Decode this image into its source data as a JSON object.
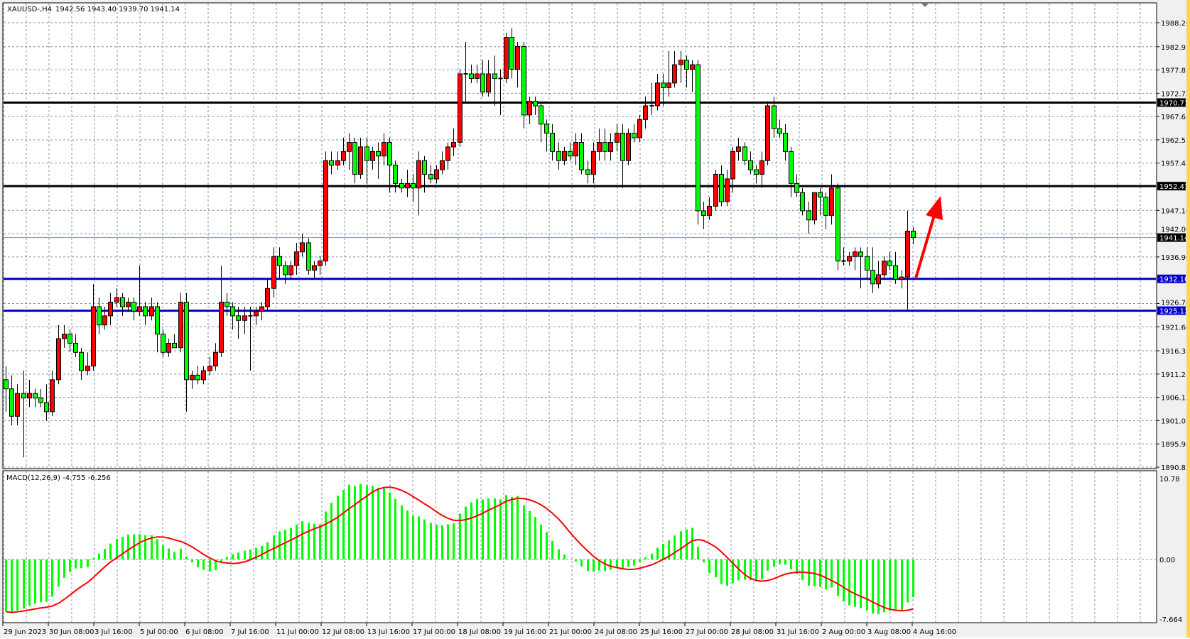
{
  "header": {
    "symbol": "XAUUSD-,H4",
    "ohlc": "1942.56 1943.40 1939.70 1941.14"
  },
  "macd": {
    "label": "MACD(12,26,9) -4.755 -6.256",
    "fast": 12,
    "slow": 26,
    "signal": 9,
    "axis_labels": [
      "10.78",
      "0.00",
      "-7.664"
    ],
    "range": [
      -7.664,
      10.78
    ],
    "hist_color": "#00ff00",
    "signal_color": "#ff0000"
  },
  "price_axis": {
    "range": [
      1890.85,
      1988.2
    ],
    "ticks": [
      "1988.20",
      "1982.95",
      "1977.85",
      "1972.75",
      "1967.65",
      "1962.55",
      "1957.45",
      "1947.10",
      "1942.00",
      "1936.90",
      "1926.70",
      "1921.60",
      "1916.35",
      "1911.25",
      "1906.15",
      "1901.05",
      "1895.95",
      "1890.85"
    ]
  },
  "levels": [
    {
      "price": "1970.71",
      "color": "#000000",
      "kind": "resistance"
    },
    {
      "price": "1952.41",
      "color": "#000000",
      "kind": "resistance"
    },
    {
      "price": "1941.14",
      "color": "#000000",
      "kind": "current-price"
    },
    {
      "price": "1932.10",
      "color": "#0000cc",
      "kind": "support"
    },
    {
      "price": "1925.13",
      "color": "#0000cc",
      "kind": "support"
    }
  ],
  "time_axis": [
    "29 Jun 2023",
    "30 Jun 08:00",
    "3 Jul 16:00",
    "5 Jul 00:00",
    "6 Jul 08:00",
    "7 Jul 16:00",
    "11 Jul 00:00",
    "12 Jul 08:00",
    "13 Jul 16:00",
    "17 Jul 00:00",
    "18 Jul 08:00",
    "19 Jul 16:00",
    "21 Jul 00:00",
    "24 Jul 08:00",
    "25 Jul 16:00",
    "27 Jul 00:00",
    "28 Jul 08:00",
    "31 Jul 16:00",
    "2 Aug 00:00",
    "3 Aug 08:00",
    "4 Aug 16:00"
  ],
  "colors": {
    "bull": "#ff0000",
    "bear": "#00ff00",
    "grid": "#8394a8",
    "arrow": "#ff0000"
  },
  "annotation": {
    "type": "arrow-up",
    "color": "#ff0000"
  },
  "chart_data": {
    "type": "candlestick",
    "title": "XAUUSD-,H4",
    "ylim": [
      1890.85,
      1988.2
    ],
    "candles_ohlc": [
      [
        1910,
        1913,
        1903,
        1908
      ],
      [
        1908,
        1911,
        1900,
        1902
      ],
      [
        1902,
        1909,
        1900,
        1907
      ],
      [
        1907,
        1912,
        1893,
        1906
      ],
      [
        1906,
        1910,
        1904,
        1907
      ],
      [
        1907,
        1908,
        1904,
        1906
      ],
      [
        1906,
        1908,
        1904,
        1905
      ],
      [
        1905,
        1909,
        1901,
        1903
      ],
      [
        1903,
        1912,
        1902,
        1910
      ],
      [
        1910,
        1922,
        1909,
        1919
      ],
      [
        1919,
        1922,
        1917,
        1920
      ],
      [
        1920,
        1921,
        1916,
        1918
      ],
      [
        1918,
        1920,
        1915,
        1916
      ],
      [
        1916,
        1917,
        1910,
        1912
      ],
      [
        1912,
        1916,
        1911,
        1913
      ],
      [
        1913,
        1931,
        1912,
        1926
      ],
      [
        1926,
        1928,
        1920,
        1922
      ],
      [
        1922,
        1926,
        1921,
        1924
      ],
      [
        1924,
        1929,
        1922,
        1927
      ],
      [
        1927,
        1930,
        1926,
        1928
      ],
      [
        1928,
        1929,
        1924,
        1926
      ],
      [
        1926,
        1928,
        1925,
        1927
      ],
      [
        1927,
        1928,
        1923,
        1925
      ],
      [
        1925,
        1935,
        1924,
        1926
      ],
      [
        1926,
        1927,
        1922,
        1924
      ],
      [
        1924,
        1928,
        1923,
        1926
      ],
      [
        1926,
        1927,
        1916,
        1920
      ],
      [
        1920,
        1921,
        1915,
        1916
      ],
      [
        1916,
        1919,
        1915,
        1918
      ],
      [
        1918,
        1920,
        1917,
        1917
      ],
      [
        1917,
        1929,
        1916,
        1927
      ],
      [
        1927,
        1929,
        1903,
        1910
      ],
      [
        1910,
        1912,
        1908,
        1911
      ],
      [
        1911,
        1913,
        1909,
        1910
      ],
      [
        1910,
        1913,
        1909,
        1912
      ],
      [
        1912,
        1915,
        1911,
        1913
      ],
      [
        1913,
        1918,
        1912,
        1916
      ],
      [
        1916,
        1935,
        1915,
        1927
      ],
      [
        1927,
        1929,
        1924,
        1926
      ],
      [
        1926,
        1927,
        1921,
        1924
      ],
      [
        1924,
        1926,
        1919,
        1923
      ],
      [
        1923,
        1926,
        1920,
        1924
      ],
      [
        1924,
        1926,
        1912,
        1924
      ],
      [
        1924,
        1926,
        1922,
        1925
      ],
      [
        1925,
        1927,
        1923,
        1926
      ],
      [
        1926,
        1932,
        1925,
        1930
      ],
      [
        1930,
        1939,
        1928,
        1937
      ],
      [
        1937,
        1939,
        1932,
        1935
      ],
      [
        1935,
        1936,
        1931,
        1933
      ],
      [
        1933,
        1936,
        1932,
        1935
      ],
      [
        1935,
        1940,
        1933,
        1938
      ],
      [
        1938,
        1942,
        1937,
        1940
      ],
      [
        1940,
        1941,
        1933,
        1934
      ],
      [
        1934,
        1936,
        1932,
        1935
      ],
      [
        1935,
        1937,
        1933,
        1936
      ],
      [
        1936,
        1960,
        1935,
        1958
      ],
      [
        1958,
        1960,
        1955,
        1957
      ],
      [
        1957,
        1960,
        1956,
        1958
      ],
      [
        1958,
        1963,
        1957,
        1960
      ],
      [
        1960,
        1964,
        1956,
        1962
      ],
      [
        1962,
        1963,
        1953,
        1955
      ],
      [
        1955,
        1963,
        1954,
        1961
      ],
      [
        1961,
        1963,
        1953,
        1958
      ],
      [
        1958,
        1961,
        1956,
        1960
      ],
      [
        1960,
        1962,
        1954,
        1959
      ],
      [
        1959,
        1964,
        1957,
        1962
      ],
      [
        1962,
        1963,
        1951,
        1957
      ],
      [
        1957,
        1958,
        1951,
        1953
      ],
      [
        1953,
        1954,
        1951,
        1952
      ],
      [
        1952,
        1956,
        1950,
        1953
      ],
      [
        1953,
        1955,
        1949,
        1952
      ],
      [
        1952,
        1960,
        1946,
        1958
      ],
      [
        1958,
        1959,
        1951,
        1955
      ],
      [
        1955,
        1957,
        1953,
        1954
      ],
      [
        1954,
        1957,
        1953,
        1956
      ],
      [
        1956,
        1960,
        1955,
        1958
      ],
      [
        1958,
        1962,
        1956,
        1961
      ],
      [
        1961,
        1965,
        1959,
        1962
      ],
      [
        1962,
        1978,
        1961,
        1977
      ],
      [
        1977,
        1984,
        1971,
        1977
      ],
      [
        1977,
        1979,
        1975,
        1976
      ],
      [
        1976,
        1979,
        1975,
        1977
      ],
      [
        1977,
        1980,
        1972,
        1973
      ],
      [
        1973,
        1980,
        1972,
        1977
      ],
      [
        1977,
        1981,
        1970,
        1976
      ],
      [
        1976,
        1978,
        1968,
        1976
      ],
      [
        1976,
        1986,
        1975,
        1985
      ],
      [
        1985,
        1987,
        1976,
        1978
      ],
      [
        1978,
        1984,
        1974,
        1983
      ],
      [
        1983,
        1984,
        1965,
        1968
      ],
      [
        1968,
        1972,
        1966,
        1971
      ],
      [
        1971,
        1972,
        1968,
        1970
      ],
      [
        1970,
        1971,
        1962,
        1966
      ],
      [
        1966,
        1967,
        1960,
        1964
      ],
      [
        1964,
        1966,
        1958,
        1960
      ],
      [
        1960,
        1962,
        1956,
        1958
      ],
      [
        1958,
        1961,
        1957,
        1960
      ],
      [
        1960,
        1962,
        1958,
        1959
      ],
      [
        1959,
        1964,
        1957,
        1962
      ],
      [
        1962,
        1964,
        1955,
        1956
      ],
      [
        1956,
        1958,
        1953,
        1955
      ],
      [
        1955,
        1962,
        1953,
        1960
      ],
      [
        1960,
        1965,
        1958,
        1962
      ],
      [
        1962,
        1965,
        1958,
        1960
      ],
      [
        1960,
        1964,
        1958,
        1962
      ],
      [
        1962,
        1966,
        1960,
        1964
      ],
      [
        1964,
        1966,
        1952,
        1958
      ],
      [
        1958,
        1965,
        1957,
        1964
      ],
      [
        1964,
        1966,
        1962,
        1963
      ],
      [
        1963,
        1968,
        1962,
        1967
      ],
      [
        1967,
        1972,
        1965,
        1970
      ],
      [
        1970,
        1975,
        1968,
        1970
      ],
      [
        1970,
        1977,
        1969,
        1975
      ],
      [
        1975,
        1977,
        1970,
        1974
      ],
      [
        1974,
        1982,
        1972,
        1975
      ],
      [
        1975,
        1982,
        1974,
        1979
      ],
      [
        1979,
        1982,
        1975,
        1980
      ],
      [
        1980,
        1981,
        1974,
        1978
      ],
      [
        1978,
        1980,
        1973,
        1979
      ],
      [
        1979,
        1980,
        1944,
        1947
      ],
      [
        1947,
        1949,
        1943,
        1946
      ],
      [
        1946,
        1950,
        1945,
        1948
      ],
      [
        1948,
        1956,
        1947,
        1955
      ],
      [
        1955,
        1957,
        1948,
        1949
      ],
      [
        1949,
        1956,
        1948,
        1954
      ],
      [
        1954,
        1961,
        1951,
        1960
      ],
      [
        1960,
        1963,
        1958,
        1961
      ],
      [
        1961,
        1962,
        1957,
        1958
      ],
      [
        1958,
        1960,
        1955,
        1956
      ],
      [
        1956,
        1957,
        1953,
        1955
      ],
      [
        1955,
        1960,
        1952,
        1958
      ],
      [
        1958,
        1971,
        1957,
        1970
      ],
      [
        1970,
        1972,
        1963,
        1965
      ],
      [
        1965,
        1967,
        1963,
        1964
      ],
      [
        1964,
        1966,
        1958,
        1960
      ],
      [
        1960,
        1961,
        1950,
        1953
      ],
      [
        1953,
        1955,
        1950,
        1951
      ],
      [
        1951,
        1952,
        1946,
        1947
      ],
      [
        1947,
        1949,
        1942,
        1945
      ],
      [
        1945,
        1951,
        1944,
        1951
      ],
      [
        1951,
        1952,
        1946,
        1950
      ],
      [
        1950,
        1951,
        1943,
        1946
      ],
      [
        1946,
        1955,
        1944,
        1952
      ],
      [
        1952,
        1953,
        1934,
        1936
      ],
      [
        1936,
        1939,
        1935,
        1936
      ],
      [
        1936,
        1938,
        1935,
        1937
      ],
      [
        1937,
        1939,
        1934,
        1938
      ],
      [
        1938,
        1939,
        1930,
        1937
      ],
      [
        1937,
        1939,
        1932,
        1934
      ],
      [
        1934,
        1939,
        1929,
        1931
      ],
      [
        1931,
        1936,
        1930,
        1933
      ],
      [
        1933,
        1937,
        1932,
        1936
      ],
      [
        1936,
        1938,
        1934,
        1935
      ],
      [
        1935,
        1938,
        1931,
        1932
      ],
      [
        1932,
        1934,
        1930,
        1932.5
      ],
      [
        1932.5,
        1947,
        1925.2,
        1942.56
      ],
      [
        1942.56,
        1943.4,
        1939.7,
        1941.14
      ]
    ]
  }
}
